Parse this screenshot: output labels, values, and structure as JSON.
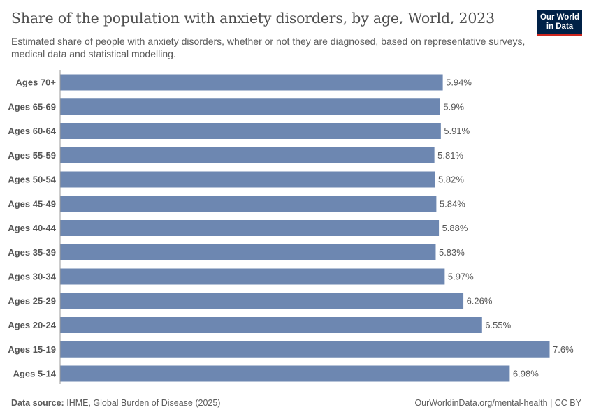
{
  "header": {
    "title": "Share of the population with anxiety disorders, by age, World, 2023",
    "subtitle": "Estimated share of people with anxiety disorders, whether or not they are diagnosed, based on representative surveys, medical data and statistical modelling.",
    "logo_line1": "Our World",
    "logo_line2": "in Data"
  },
  "chart_data": {
    "type": "bar",
    "orientation": "horizontal",
    "categories": [
      "Ages 70+",
      "Ages 65-69",
      "Ages 60-64",
      "Ages 55-59",
      "Ages 50-54",
      "Ages 45-49",
      "Ages 40-44",
      "Ages 35-39",
      "Ages 30-34",
      "Ages 25-29",
      "Ages 20-24",
      "Ages 15-19",
      "Ages 5-14"
    ],
    "values": [
      5.94,
      5.9,
      5.91,
      5.81,
      5.82,
      5.84,
      5.88,
      5.83,
      5.97,
      6.26,
      6.55,
      7.6,
      6.98
    ],
    "labels": [
      "5.94%",
      "5.9%",
      "5.91%",
      "5.81%",
      "5.82%",
      "5.84%",
      "5.88%",
      "5.83%",
      "5.97%",
      "6.26%",
      "6.55%",
      "7.6%",
      "6.98%"
    ],
    "unit": "%",
    "bar_color": "#6d87b1",
    "xlim": [
      0,
      7.6
    ]
  },
  "footer": {
    "source_label": "Data source:",
    "source": "IHME, Global Burden of Disease (2025)",
    "url": "OurWorldinData.org/mental-health | CC BY"
  }
}
